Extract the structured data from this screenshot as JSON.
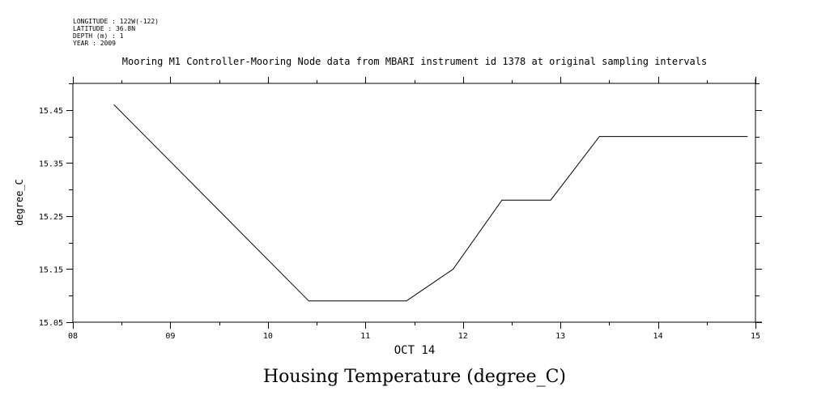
{
  "meta": {
    "longitude": "LONGITUDE : 122W(-122)",
    "latitude": "LATITUDE : 36.8N",
    "depth": "DEPTH (m) : 1",
    "year": "YEAR : 2009"
  },
  "chart_data": {
    "type": "line",
    "title": "Mooring M1 Controller-Mooring Node data from MBARI instrument id 1378 at original sampling intervals",
    "xlabel": "OCT 14",
    "ylabel": "degree_C",
    "caption": "Housing Temperature (degree_C)",
    "x_ticks": [
      "08",
      "09",
      "10",
      "11",
      "12",
      "13",
      "14",
      "15"
    ],
    "y_ticks": [
      "15.05",
      "15.15",
      "15.25",
      "15.35",
      "15.45"
    ],
    "xlim": [
      8,
      15
    ],
    "ylim": [
      15.05,
      15.5
    ],
    "grid": false,
    "series": [
      {
        "x": [
          8.42,
          10.42,
          11.42,
          11.9,
          12.4,
          12.9,
          13.4,
          14.92
        ],
        "y": [
          15.46,
          15.09,
          15.09,
          15.15,
          15.28,
          15.28,
          15.4,
          15.4
        ]
      }
    ]
  }
}
